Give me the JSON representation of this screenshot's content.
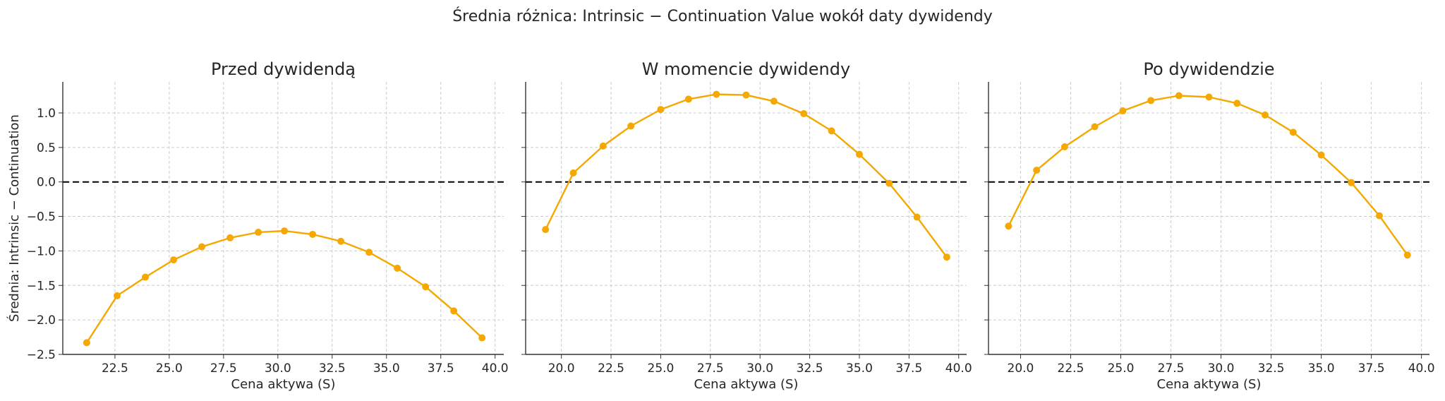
{
  "figure": {
    "title": "Średnia różnica: Intrinsic − Continuation Value wokół daty dywidendy"
  },
  "colors": {
    "series": "#F5A800",
    "zero_line": "#000000",
    "grid": "#cccccc",
    "axis": "#333333",
    "text": "#262626"
  },
  "chart_data": [
    {
      "type": "line",
      "title": "Przed dywidendą",
      "xlabel": "Cena aktywa (S)",
      "ylabel": "Średnia: Intrinsic − Continuation",
      "xlim": [
        20.1,
        40.4
      ],
      "ylim": [
        -2.5,
        1.45
      ],
      "xticks": [
        "22.5",
        "25.0",
        "27.5",
        "30.0",
        "32.5",
        "35.0",
        "37.5",
        "40.0"
      ],
      "yticks": [
        "1.0",
        "0.5",
        "0.0",
        "−0.5",
        "−1.0",
        "−1.5",
        "−2.0",
        "−2.5"
      ],
      "grid": true,
      "reference_line_y": 0.0,
      "series": [
        {
          "x": [
            21.2,
            22.6,
            23.9,
            25.2,
            26.5,
            27.8,
            29.1,
            30.3,
            31.6,
            32.9,
            34.2,
            35.5,
            36.8,
            38.1,
            39.4
          ],
          "y": [
            -2.33,
            -1.65,
            -1.38,
            -1.13,
            -0.94,
            -0.81,
            -0.73,
            -0.71,
            -0.76,
            -0.86,
            -1.02,
            -1.25,
            -1.52,
            -1.87,
            -2.26
          ]
        }
      ]
    },
    {
      "type": "line",
      "title": "W momencie dywidendy",
      "xlabel": "Cena aktywa (S)",
      "xlim": [
        18.2,
        40.4
      ],
      "ylim": [
        -2.5,
        1.45
      ],
      "xticks": [
        "20.0",
        "22.5",
        "25.0",
        "27.5",
        "30.0",
        "32.5",
        "35.0",
        "37.5",
        "40.0"
      ],
      "grid": true,
      "reference_line_y": 0.0,
      "series": [
        {
          "x": [
            19.2,
            20.6,
            22.1,
            23.5,
            25.0,
            26.4,
            27.8,
            29.3,
            30.7,
            32.2,
            33.6,
            35.0,
            36.5,
            37.9,
            39.4
          ],
          "y": [
            -0.69,
            0.13,
            0.52,
            0.81,
            1.05,
            1.2,
            1.27,
            1.26,
            1.17,
            0.99,
            0.74,
            0.4,
            -0.02,
            -0.51,
            -1.09
          ]
        }
      ]
    },
    {
      "type": "line",
      "title": "Po dywidendzie",
      "xlabel": "Cena aktywa (S)",
      "xlim": [
        18.4,
        40.4
      ],
      "ylim": [
        -2.5,
        1.45
      ],
      "xticks": [
        "20.0",
        "22.5",
        "25.0",
        "27.5",
        "30.0",
        "32.5",
        "35.0",
        "37.5",
        "40.0"
      ],
      "grid": true,
      "reference_line_y": 0.0,
      "series": [
        {
          "x": [
            19.4,
            20.8,
            22.2,
            23.7,
            25.1,
            26.5,
            27.9,
            29.4,
            30.8,
            32.2,
            33.6,
            35.0,
            36.5,
            37.9,
            39.3
          ],
          "y": [
            -0.64,
            0.17,
            0.51,
            0.8,
            1.03,
            1.18,
            1.25,
            1.23,
            1.14,
            0.97,
            0.72,
            0.39,
            -0.01,
            -0.49,
            -1.06
          ]
        }
      ]
    }
  ]
}
